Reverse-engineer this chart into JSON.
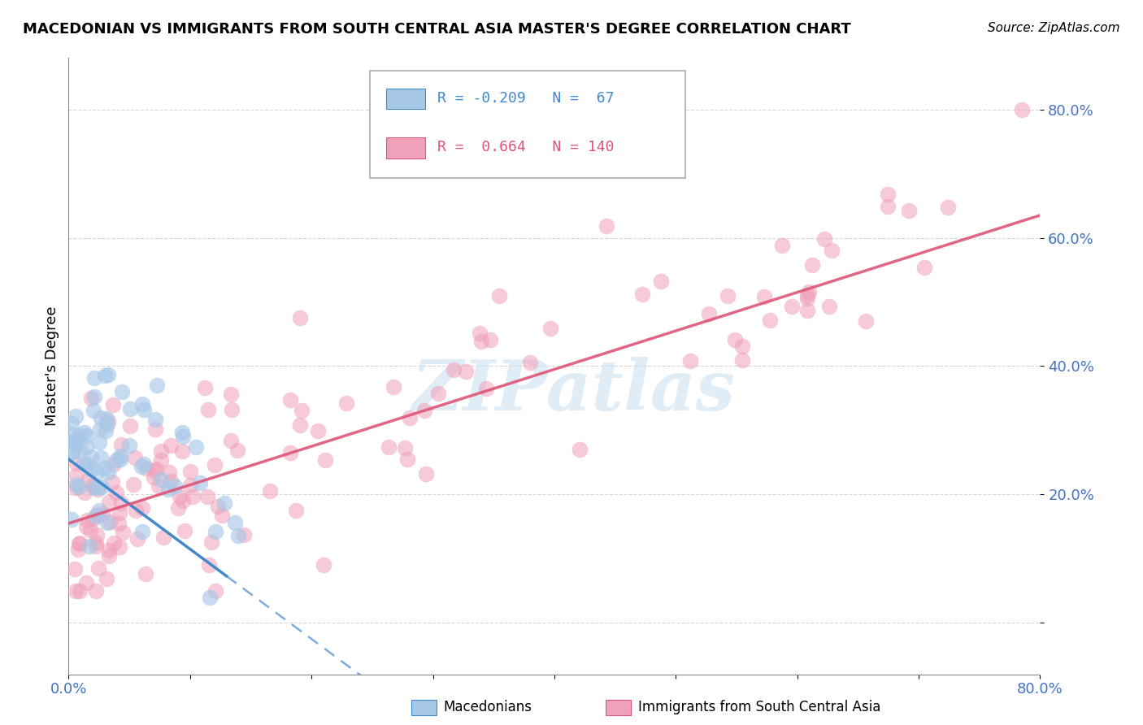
{
  "title": "MACEDONIAN VS IMMIGRANTS FROM SOUTH CENTRAL ASIA MASTER'S DEGREE CORRELATION CHART",
  "source": "Source: ZipAtlas.com",
  "ylabel": "Master's Degree",
  "blue_R": -0.209,
  "blue_N": 67,
  "pink_R": 0.664,
  "pink_N": 140,
  "blue_color": "#a8c8e8",
  "pink_color": "#f0a0b8",
  "blue_line_color": "#4488cc",
  "pink_line_color": "#dd5577",
  "watermark_color": "#c8dff0",
  "legend_label_blue": "Macedonians",
  "legend_label_pink": "Immigrants from South Central Asia",
  "xmin": 0.0,
  "xmax": 0.8,
  "ymin": -0.08,
  "ymax": 0.88,
  "yticks": [
    0.0,
    0.2,
    0.4,
    0.6,
    0.8
  ],
  "title_fontsize": 13,
  "source_fontsize": 11,
  "tick_label_color": "#4472c4"
}
